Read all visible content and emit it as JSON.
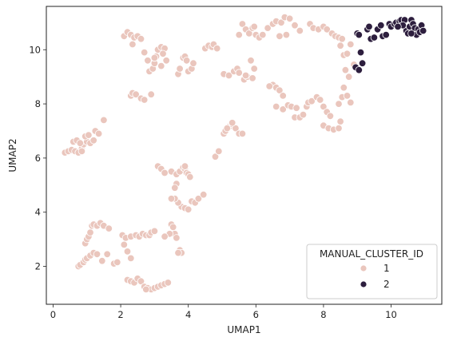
{
  "chart_data": {
    "type": "scatter",
    "xlabel": "UMAP1",
    "ylabel": "UMAP2",
    "xlim": [
      -0.2,
      11.5
    ],
    "ylim": [
      0.6,
      11.6
    ],
    "xticks": [
      0,
      2,
      4,
      6,
      8,
      10
    ],
    "yticks": [
      2,
      4,
      6,
      8,
      10
    ],
    "grid": false,
    "legend": {
      "title": "MANUAL_CLUSTER_ID",
      "placement": "lower-right",
      "entries": [
        {
          "label": "1",
          "color": "#eac6bd"
        },
        {
          "label": "2",
          "color": "#2d1e3e"
        }
      ]
    },
    "series": [
      {
        "name": "1",
        "color": "#eac6bd",
        "points": [
          [
            0.35,
            6.2
          ],
          [
            0.45,
            6.25
          ],
          [
            0.55,
            6.3
          ],
          [
            0.65,
            6.25
          ],
          [
            0.75,
            6.2
          ],
          [
            0.85,
            6.35
          ],
          [
            0.9,
            6.5
          ],
          [
            1.0,
            6.6
          ],
          [
            1.1,
            6.55
          ],
          [
            1.2,
            6.65
          ],
          [
            1.25,
            7.0
          ],
          [
            1.35,
            6.9
          ],
          [
            1.5,
            7.4
          ],
          [
            0.6,
            6.6
          ],
          [
            0.7,
            6.65
          ],
          [
            0.8,
            6.55
          ],
          [
            0.95,
            6.8
          ],
          [
            1.05,
            6.85
          ],
          [
            0.85,
            6.25
          ],
          [
            2.1,
            10.5
          ],
          [
            2.2,
            10.65
          ],
          [
            2.3,
            10.55
          ],
          [
            2.4,
            10.45
          ],
          [
            2.5,
            10.5
          ],
          [
            2.6,
            10.4
          ],
          [
            2.35,
            10.2
          ],
          [
            2.7,
            9.9
          ],
          [
            2.8,
            9.6
          ],
          [
            2.85,
            9.2
          ],
          [
            2.95,
            9.3
          ],
          [
            3.0,
            9.5
          ],
          [
            3.05,
            9.75
          ],
          [
            3.1,
            10.0
          ],
          [
            3.2,
            10.1
          ],
          [
            3.3,
            10.05
          ],
          [
            3.25,
            9.85
          ],
          [
            3.35,
            9.6
          ],
          [
            3.2,
            9.4
          ],
          [
            3.0,
            9.7
          ],
          [
            2.3,
            8.3
          ],
          [
            2.35,
            8.4
          ],
          [
            2.45,
            8.35
          ],
          [
            2.6,
            8.2
          ],
          [
            2.7,
            8.15
          ],
          [
            2.9,
            8.35
          ],
          [
            3.7,
            9.1
          ],
          [
            3.75,
            9.3
          ],
          [
            3.85,
            9.7
          ],
          [
            3.9,
            9.75
          ],
          [
            4.0,
            9.2
          ],
          [
            4.1,
            9.3
          ],
          [
            4.15,
            9.5
          ],
          [
            3.95,
            9.6
          ],
          [
            4.5,
            10.05
          ],
          [
            4.6,
            10.15
          ],
          [
            4.7,
            10.1
          ],
          [
            4.75,
            10.2
          ],
          [
            4.85,
            10.05
          ],
          [
            5.05,
            9.1
          ],
          [
            5.2,
            9.05
          ],
          [
            5.35,
            9.2
          ],
          [
            5.45,
            9.3
          ],
          [
            5.5,
            9.15
          ],
          [
            5.65,
            8.9
          ],
          [
            5.75,
            9.0
          ],
          [
            5.9,
            8.95
          ],
          [
            5.95,
            9.3
          ],
          [
            5.85,
            9.6
          ],
          [
            5.7,
            9.05
          ],
          [
            5.5,
            10.55
          ],
          [
            5.6,
            10.95
          ],
          [
            5.7,
            10.75
          ],
          [
            5.8,
            10.6
          ],
          [
            5.9,
            10.8
          ],
          [
            5.95,
            10.85
          ],
          [
            6.0,
            10.55
          ],
          [
            6.1,
            10.45
          ],
          [
            6.2,
            10.55
          ],
          [
            6.35,
            10.8
          ],
          [
            6.5,
            10.95
          ],
          [
            6.6,
            11.05
          ],
          [
            6.75,
            11.0
          ],
          [
            6.85,
            11.2
          ],
          [
            7.0,
            11.15
          ],
          [
            6.9,
            10.55
          ],
          [
            6.7,
            10.5
          ],
          [
            7.15,
            10.9
          ],
          [
            7.3,
            10.7
          ],
          [
            7.6,
            10.95
          ],
          [
            7.7,
            10.8
          ],
          [
            7.85,
            10.75
          ],
          [
            8.0,
            10.85
          ],
          [
            8.1,
            10.75
          ],
          [
            8.25,
            10.6
          ],
          [
            8.35,
            10.5
          ],
          [
            8.45,
            10.45
          ],
          [
            8.55,
            10.4
          ],
          [
            8.5,
            10.15
          ],
          [
            8.6,
            9.8
          ],
          [
            8.7,
            9.85
          ],
          [
            8.8,
            10.2
          ],
          [
            8.9,
            9.45
          ],
          [
            8.75,
            9.0
          ],
          [
            8.6,
            8.6
          ],
          [
            8.55,
            8.25
          ],
          [
            8.7,
            8.3
          ],
          [
            8.8,
            8.05
          ],
          [
            8.45,
            8.0
          ],
          [
            8.65,
            9.25
          ],
          [
            6.5,
            8.7
          ],
          [
            6.6,
            8.6
          ],
          [
            6.7,
            8.5
          ],
          [
            6.8,
            8.3
          ],
          [
            6.6,
            7.9
          ],
          [
            6.8,
            7.8
          ],
          [
            6.95,
            7.95
          ],
          [
            7.05,
            7.9
          ],
          [
            7.15,
            7.5
          ],
          [
            7.3,
            7.5
          ],
          [
            7.4,
            7.6
          ],
          [
            7.5,
            7.9
          ],
          [
            7.55,
            8.05
          ],
          [
            7.65,
            8.1
          ],
          [
            7.8,
            8.25
          ],
          [
            7.9,
            8.15
          ],
          [
            8.0,
            7.9
          ],
          [
            8.1,
            7.7
          ],
          [
            8.2,
            7.55
          ],
          [
            8.0,
            7.2
          ],
          [
            8.15,
            7.1
          ],
          [
            8.3,
            7.05
          ],
          [
            8.45,
            7.1
          ],
          [
            8.5,
            7.35
          ],
          [
            6.4,
            8.65
          ],
          [
            7.2,
            7.85
          ],
          [
            5.05,
            6.9
          ],
          [
            5.1,
            7.0
          ],
          [
            5.2,
            7.15
          ],
          [
            5.3,
            7.25
          ],
          [
            5.4,
            7.1
          ],
          [
            5.5,
            6.9
          ],
          [
            5.6,
            6.9
          ],
          [
            5.3,
            7.3
          ],
          [
            5.15,
            7.1
          ],
          [
            4.8,
            6.05
          ],
          [
            4.9,
            6.25
          ],
          [
            3.1,
            5.7
          ],
          [
            3.2,
            5.6
          ],
          [
            3.3,
            5.45
          ],
          [
            3.5,
            5.5
          ],
          [
            3.65,
            5.4
          ],
          [
            3.75,
            5.5
          ],
          [
            3.85,
            5.65
          ],
          [
            3.9,
            5.6
          ],
          [
            3.95,
            5.45
          ],
          [
            4.0,
            5.4
          ],
          [
            4.05,
            5.3
          ],
          [
            3.65,
            5.05
          ],
          [
            3.6,
            4.9
          ],
          [
            3.8,
            4.2
          ],
          [
            3.9,
            4.15
          ],
          [
            4.0,
            4.1
          ],
          [
            4.1,
            4.4
          ],
          [
            4.2,
            4.35
          ],
          [
            4.3,
            4.5
          ],
          [
            4.45,
            4.65
          ],
          [
            3.7,
            4.35
          ],
          [
            3.6,
            4.5
          ],
          [
            3.9,
            5.7
          ],
          [
            3.5,
            4.5
          ],
          [
            0.75,
            2.0
          ],
          [
            0.8,
            2.05
          ],
          [
            0.9,
            2.15
          ],
          [
            0.95,
            2.25
          ],
          [
            1.0,
            2.3
          ],
          [
            1.1,
            2.4
          ],
          [
            1.2,
            2.5
          ],
          [
            1.3,
            2.45
          ],
          [
            1.45,
            2.2
          ],
          [
            1.6,
            2.45
          ],
          [
            1.8,
            2.1
          ],
          [
            1.9,
            2.15
          ],
          [
            0.95,
            2.85
          ],
          [
            1.0,
            3.0
          ],
          [
            1.05,
            3.1
          ],
          [
            1.1,
            3.25
          ],
          [
            1.15,
            3.5
          ],
          [
            1.2,
            3.55
          ],
          [
            1.3,
            3.5
          ],
          [
            1.4,
            3.6
          ],
          [
            1.5,
            3.5
          ],
          [
            1.65,
            3.4
          ],
          [
            2.05,
            3.15
          ],
          [
            2.15,
            3.05
          ],
          [
            2.3,
            3.1
          ],
          [
            2.45,
            3.15
          ],
          [
            2.55,
            3.1
          ],
          [
            2.65,
            3.2
          ],
          [
            2.75,
            3.15
          ],
          [
            2.85,
            3.15
          ],
          [
            2.9,
            3.25
          ],
          [
            3.0,
            3.3
          ],
          [
            2.2,
            2.55
          ],
          [
            2.3,
            2.3
          ],
          [
            2.1,
            2.8
          ],
          [
            3.5,
            3.55
          ],
          [
            3.55,
            3.45
          ],
          [
            3.6,
            3.2
          ],
          [
            3.65,
            3.05
          ],
          [
            3.75,
            2.6
          ],
          [
            3.8,
            2.5
          ],
          [
            3.7,
            2.5
          ],
          [
            3.45,
            3.2
          ],
          [
            3.3,
            3.1
          ],
          [
            2.2,
            1.5
          ],
          [
            2.3,
            1.45
          ],
          [
            2.4,
            1.4
          ],
          [
            2.5,
            1.55
          ],
          [
            2.6,
            1.45
          ],
          [
            2.7,
            1.25
          ],
          [
            2.8,
            1.2
          ],
          [
            2.9,
            1.15
          ],
          [
            3.0,
            1.2
          ],
          [
            3.1,
            1.25
          ],
          [
            3.2,
            1.3
          ],
          [
            3.3,
            1.35
          ],
          [
            3.4,
            1.4
          ],
          [
            2.75,
            1.15
          ]
        ]
      },
      {
        "name": "2",
        "color": "#2d1e3e",
        "points": [
          [
            9.0,
            10.6
          ],
          [
            9.05,
            10.55
          ],
          [
            9.1,
            9.9
          ],
          [
            9.15,
            9.5
          ],
          [
            8.95,
            9.35
          ],
          [
            9.05,
            9.25
          ],
          [
            9.3,
            10.75
          ],
          [
            9.35,
            10.85
          ],
          [
            9.4,
            10.4
          ],
          [
            9.5,
            10.45
          ],
          [
            9.6,
            10.75
          ],
          [
            9.7,
            10.9
          ],
          [
            9.75,
            10.5
          ],
          [
            9.85,
            10.55
          ],
          [
            9.95,
            10.95
          ],
          [
            10.0,
            10.85
          ],
          [
            10.1,
            10.95
          ],
          [
            10.15,
            11.0
          ],
          [
            10.25,
            11.05
          ],
          [
            10.3,
            11.1
          ],
          [
            10.4,
            11.1
          ],
          [
            10.45,
            10.7
          ],
          [
            10.5,
            10.6
          ],
          [
            10.55,
            10.85
          ],
          [
            10.6,
            11.1
          ],
          [
            10.65,
            10.95
          ],
          [
            10.7,
            10.8
          ],
          [
            10.75,
            10.55
          ],
          [
            10.8,
            10.75
          ],
          [
            10.85,
            10.65
          ],
          [
            10.9,
            10.9
          ],
          [
            10.95,
            10.7
          ],
          [
            10.35,
            10.9
          ],
          [
            10.2,
            10.85
          ],
          [
            10.6,
            10.6
          ]
        ]
      }
    ]
  }
}
